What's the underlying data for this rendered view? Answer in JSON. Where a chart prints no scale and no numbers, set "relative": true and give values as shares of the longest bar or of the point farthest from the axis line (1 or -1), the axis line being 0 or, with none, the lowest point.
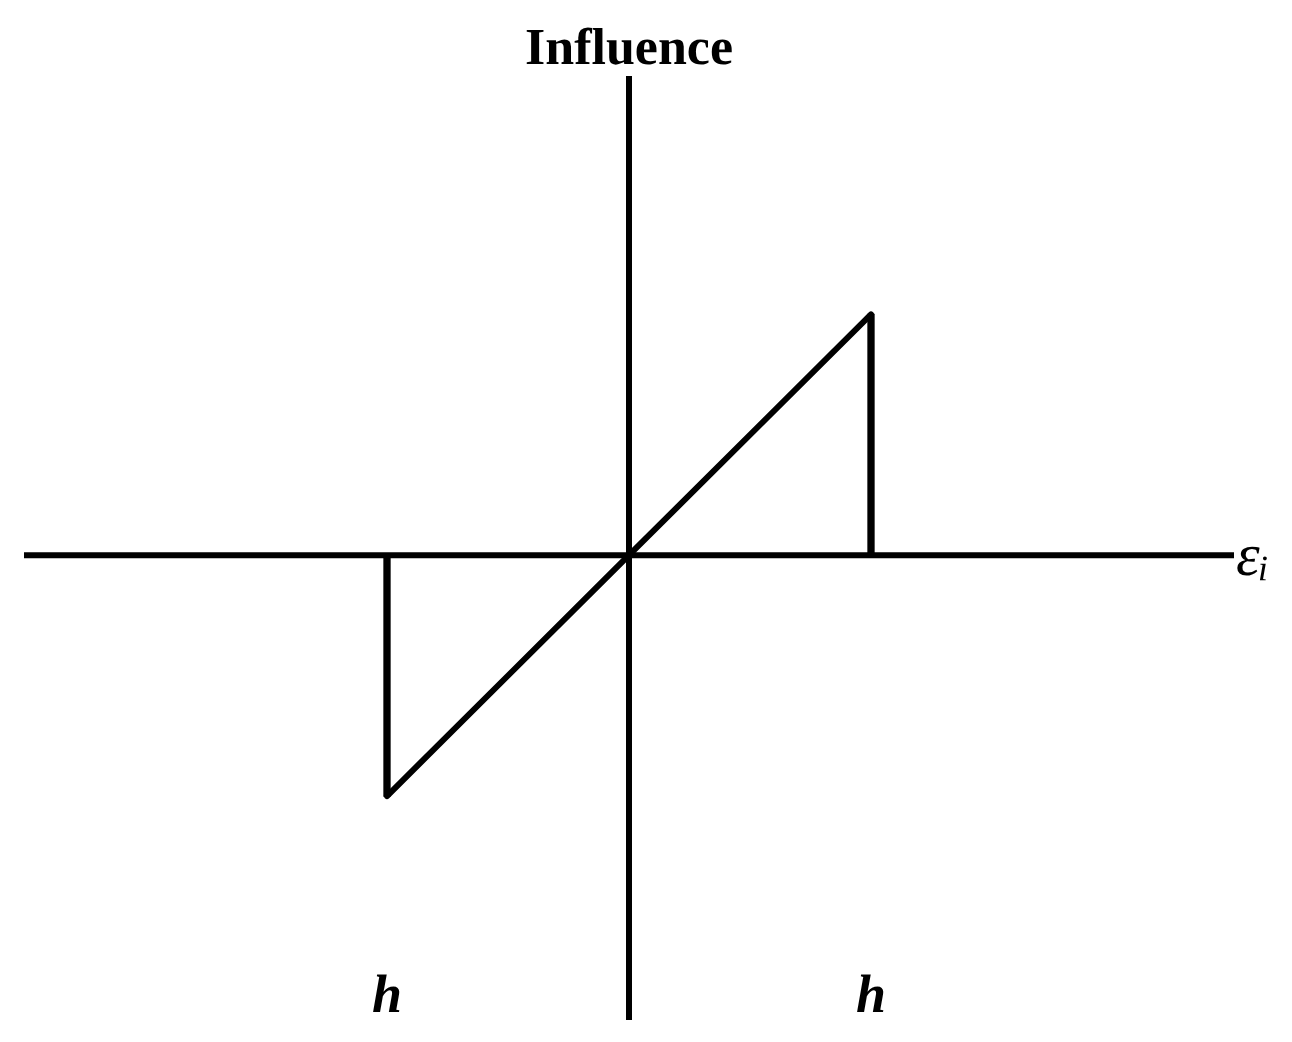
{
  "chart_data": {
    "type": "line",
    "relative": true,
    "ylabel": "Influence",
    "xlabel": "εᵢ",
    "categories": [
      "h",
      null,
      "h"
    ],
    "series": [
      {
        "color": "#000000",
        "values": [
          -1,
          0,
          1
        ]
      },
      {
        "type": "bar",
        "color": "#000000",
        "values": [
          -1,
          null,
          1
        ]
      }
    ]
  }
}
